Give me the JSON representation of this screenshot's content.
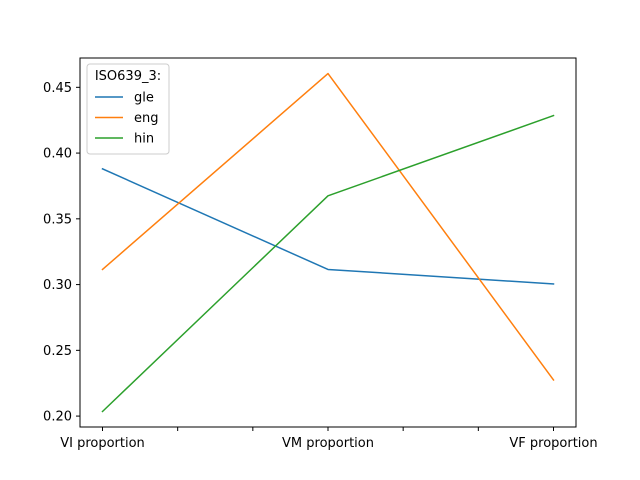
{
  "chart_data": {
    "type": "line",
    "categories": [
      "VI proportion",
      "VM proportion",
      "VF proportion"
    ],
    "x_minor_ticks": 2,
    "series": [
      {
        "name": "gle",
        "color": "#1f77b4",
        "values": [
          0.388,
          0.3115,
          0.3005
        ]
      },
      {
        "name": "eng",
        "color": "#ff7f0e",
        "values": [
          0.3115,
          0.4605,
          0.2275
        ]
      },
      {
        "name": "hin",
        "color": "#2ca02c",
        "values": [
          0.2035,
          0.3675,
          0.4285
        ]
      }
    ],
    "yticks": [
      0.2,
      0.25,
      0.3,
      0.35,
      0.4,
      0.45
    ],
    "ytick_labels": [
      "0.20",
      "0.25",
      "0.30",
      "0.35",
      "0.40",
      "0.45"
    ],
    "ylim": [
      0.1917,
      0.4723
    ],
    "title": "",
    "xlabel": "",
    "ylabel": "",
    "grid": false,
    "legend": {
      "title": "ISO639_3:",
      "placement": "upper-left"
    }
  }
}
